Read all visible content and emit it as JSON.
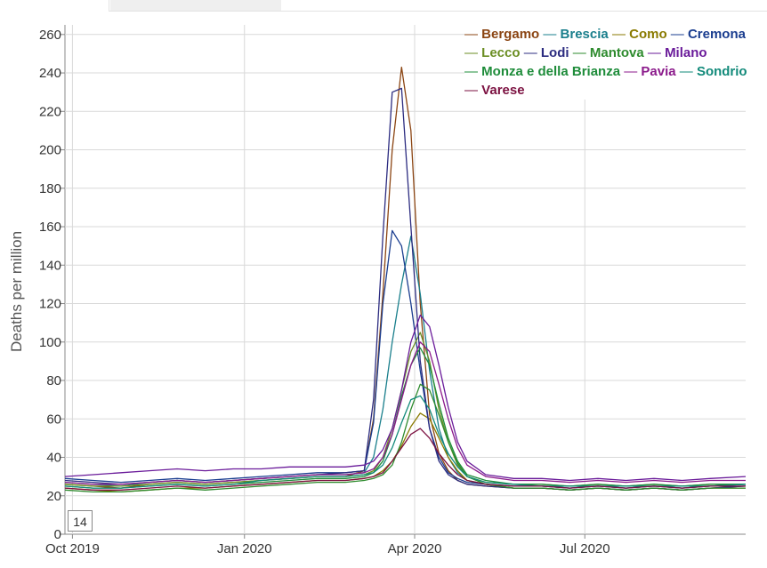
{
  "tabs": [
    "",
    ""
  ],
  "window_value": "14",
  "chart_data": {
    "type": "line",
    "title": "",
    "xlabel": "",
    "ylabel": "Deaths per million",
    "x_ticks": [
      "Oct 2019",
      "Jan 2020",
      "Apr 2020",
      "Jul 2020"
    ],
    "x_tick_dates": [
      "2019-10-01",
      "2020-01-01",
      "2020-04-01",
      "2020-07-01"
    ],
    "x_range": [
      "2019-09-27",
      "2020-09-25"
    ],
    "ylim": [
      0,
      265
    ],
    "y_ticks": [
      0,
      20,
      40,
      60,
      80,
      100,
      120,
      140,
      160,
      180,
      200,
      220,
      240,
      260
    ],
    "grid": true,
    "legend_position": "top-right",
    "x_dates": [
      "2019-09-27",
      "2019-10-12",
      "2019-10-27",
      "2019-11-11",
      "2019-11-26",
      "2019-12-11",
      "2019-12-26",
      "2020-01-10",
      "2020-01-25",
      "2020-02-09",
      "2020-02-24",
      "2020-03-05",
      "2020-03-10",
      "2020-03-15",
      "2020-03-20",
      "2020-03-25",
      "2020-03-30",
      "2020-04-04",
      "2020-04-09",
      "2020-04-14",
      "2020-04-19",
      "2020-04-24",
      "2020-04-29",
      "2020-05-09",
      "2020-05-24",
      "2020-06-08",
      "2020-06-23",
      "2020-07-08",
      "2020-07-23",
      "2020-08-07",
      "2020-08-22",
      "2020-09-06",
      "2020-09-25"
    ],
    "series": [
      {
        "name": "Bergamo",
        "color": "#8b4513",
        "values": [
          26,
          25,
          24,
          26,
          27,
          26,
          27,
          28,
          29,
          30,
          30,
          33,
          60,
          125,
          200,
          243,
          210,
          120,
          62,
          42,
          33,
          28,
          26,
          25,
          24,
          24,
          23,
          24,
          23,
          24,
          23,
          24,
          25
        ]
      },
      {
        "name": "Brescia",
        "color": "#1a7f8c",
        "values": [
          27,
          26,
          25,
          27,
          28,
          27,
          28,
          29,
          30,
          31,
          31,
          32,
          40,
          65,
          100,
          130,
          155,
          125,
          85,
          55,
          40,
          32,
          28,
          26,
          25,
          25,
          24,
          25,
          24,
          25,
          24,
          25,
          26
        ]
      },
      {
        "name": "Como",
        "color": "#8a7a00",
        "values": [
          24,
          23,
          22,
          23,
          24,
          24,
          25,
          26,
          27,
          28,
          28,
          29,
          30,
          33,
          38,
          46,
          56,
          63,
          60,
          50,
          40,
          33,
          28,
          26,
          24,
          24,
          23,
          24,
          23,
          24,
          23,
          24,
          24
        ]
      },
      {
        "name": "Cremona",
        "color": "#1a3d8f",
        "values": [
          29,
          28,
          27,
          28,
          29,
          28,
          29,
          30,
          31,
          32,
          32,
          33,
          58,
          120,
          158,
          150,
          120,
          85,
          55,
          40,
          32,
          29,
          27,
          26,
          25,
          25,
          24,
          25,
          24,
          25,
          24,
          25,
          26
        ]
      },
      {
        "name": "Lecco",
        "color": "#6b8e23",
        "values": [
          26,
          25,
          25,
          26,
          27,
          26,
          27,
          28,
          29,
          30,
          30,
          31,
          33,
          40,
          55,
          75,
          95,
          105,
          90,
          65,
          48,
          36,
          30,
          27,
          26,
          26,
          25,
          26,
          25,
          26,
          25,
          26,
          26
        ]
      },
      {
        "name": "Lodi",
        "color": "#2c2c80",
        "values": [
          28,
          27,
          26,
          27,
          28,
          27,
          28,
          29,
          30,
          31,
          32,
          33,
          70,
          155,
          230,
          232,
          160,
          90,
          55,
          38,
          31,
          28,
          26,
          25,
          24,
          24,
          23,
          24,
          23,
          24,
          23,
          24,
          25
        ]
      },
      {
        "name": "Mantova",
        "color": "#2e8b2e",
        "values": [
          23,
          22,
          22,
          23,
          24,
          23,
          24,
          25,
          26,
          27,
          27,
          28,
          29,
          31,
          36,
          48,
          65,
          78,
          75,
          62,
          48,
          37,
          30,
          26,
          24,
          24,
          23,
          24,
          23,
          24,
          23,
          24,
          24
        ]
      },
      {
        "name": "Milano",
        "color": "#6a1b9a",
        "values": [
          30,
          31,
          32,
          33,
          34,
          33,
          34,
          34,
          35,
          35,
          35,
          36,
          38,
          44,
          55,
          75,
          100,
          114,
          108,
          88,
          66,
          48,
          38,
          31,
          29,
          29,
          28,
          29,
          28,
          29,
          28,
          29,
          30
        ]
      },
      {
        "name": "Monza e della Brianza",
        "color": "#1e8c3a",
        "values": [
          25,
          24,
          24,
          25,
          26,
          25,
          26,
          27,
          28,
          29,
          29,
          30,
          32,
          38,
          52,
          72,
          88,
          97,
          88,
          68,
          50,
          38,
          31,
          28,
          26,
          26,
          25,
          26,
          25,
          26,
          25,
          26,
          26
        ]
      },
      {
        "name": "Pavia",
        "color": "#8b1a8b",
        "values": [
          27,
          26,
          26,
          27,
          28,
          27,
          28,
          29,
          30,
          31,
          31,
          32,
          34,
          40,
          52,
          70,
          88,
          100,
          95,
          78,
          60,
          45,
          36,
          30,
          28,
          28,
          27,
          28,
          27,
          28,
          27,
          28,
          28
        ]
      },
      {
        "name": "Sondrio",
        "color": "#128a7a",
        "values": [
          25,
          24,
          24,
          25,
          26,
          25,
          26,
          28,
          29,
          30,
          30,
          31,
          32,
          36,
          45,
          58,
          70,
          72,
          65,
          52,
          42,
          35,
          30,
          27,
          26,
          25,
          25,
          25,
          25,
          25,
          25,
          25,
          26
        ]
      },
      {
        "name": "Varese",
        "color": "#7b1040",
        "values": [
          24,
          23,
          23,
          24,
          25,
          24,
          25,
          26,
          27,
          28,
          28,
          29,
          30,
          32,
          38,
          45,
          52,
          55,
          50,
          42,
          36,
          31,
          28,
          26,
          25,
          25,
          24,
          25,
          24,
          25,
          24,
          25,
          25
        ]
      }
    ]
  }
}
